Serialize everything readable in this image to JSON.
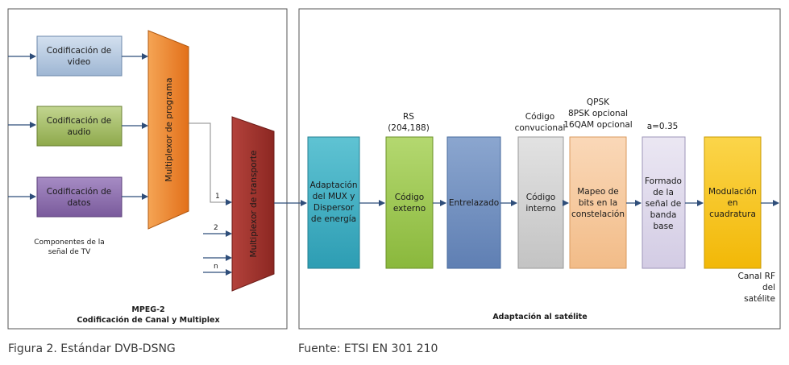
{
  "left_panel": {
    "inputs": {
      "video": [
        "Codificación de",
        "video"
      ],
      "audio": [
        "Codificación de",
        "audio"
      ],
      "data": [
        "Codificación de",
        "datos"
      ]
    },
    "program_mux": "Multiplexor de programa",
    "transport_mux": "Multiplexor de transporte",
    "port_labels": [
      "1",
      "2",
      "n"
    ],
    "components_note": [
      "Componentes de la",
      "señal de TV"
    ],
    "footer": [
      "MPEG-2",
      "Codificación de Canal y Multiplex"
    ]
  },
  "right_panel": {
    "blocks": {
      "adaptation": [
        "Adaptación",
        "del MUX y",
        "Dispersor",
        "de energía"
      ],
      "outer_code": [
        "Código",
        "externo"
      ],
      "interleaving": [
        "Entrelazado"
      ],
      "inner_code": [
        "Código",
        "interno"
      ],
      "mapping": [
        "Mapeo de",
        "bits en la",
        "constelación"
      ],
      "shaping": [
        "Formado",
        "de la",
        "señal de",
        "banda",
        "base"
      ],
      "modulation": [
        "Modulación",
        "en",
        "cuadratura"
      ]
    },
    "annotations": {
      "rs": [
        "RS",
        "(204,188)"
      ],
      "conv": [
        "Código",
        "convucional"
      ],
      "qpsk": [
        "QPSK",
        "8PSK opcional",
        "16QAM opcional"
      ],
      "alpha": "a=0.35",
      "output": [
        "Canal RF",
        "del",
        "satélite"
      ]
    },
    "footer": "Adaptación al satélite"
  },
  "captions": {
    "left": "Figura 2. Estándar DVB-DSNG",
    "right": "Fuente: ETSI EN 301 210"
  },
  "colors": {
    "video": "#b7c9e0",
    "audio": "#a8bf6b",
    "data": "#8d6fae",
    "program_mux": "#ec7f22",
    "transport_mux": "#9d2f2a",
    "adaptation": "#3eb0c4",
    "outer_code": "#9ccb4d",
    "interleaving": "#6f8fc0",
    "inner_code": "#cfcfcf",
    "mapping": "#f6c89d",
    "shaping": "#dcd7ea",
    "modulation": "#f8c51a"
  }
}
